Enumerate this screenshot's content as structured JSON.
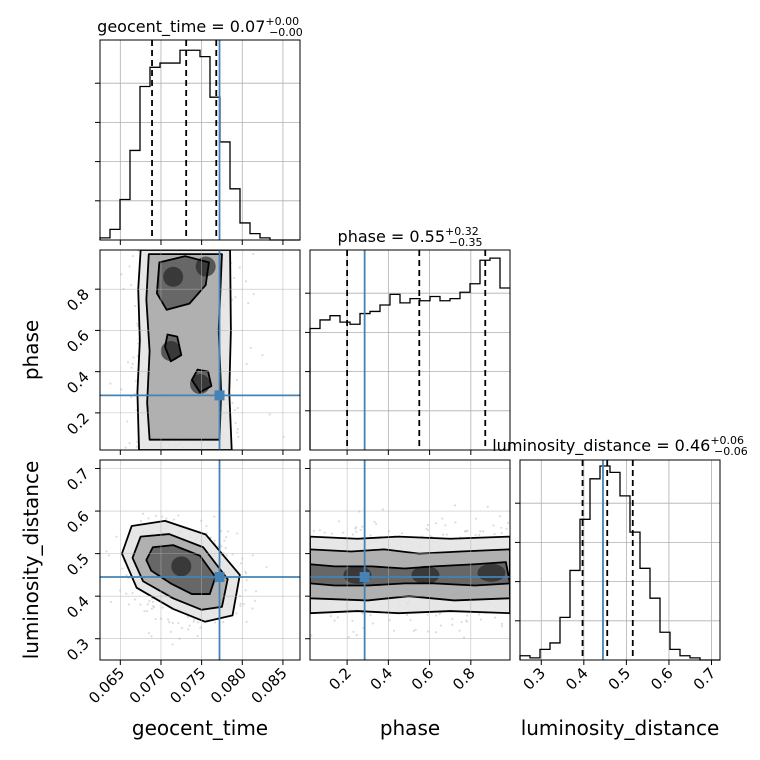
{
  "chart_data": {
    "type": "corner",
    "parameters": [
      "geocent_time",
      "phase",
      "luminosity_distance"
    ],
    "axis_labels": {
      "x": [
        "geocent_time",
        "phase",
        "luminosity_distance"
      ],
      "y": [
        "phase",
        "luminosity_distance"
      ]
    },
    "panel_titles": [
      {
        "param": "geocent_time",
        "text": "geocent_time = 0.07",
        "sup": "+0.00",
        "sub": "−0.00"
      },
      {
        "param": "phase",
        "text": "phase = 0.55",
        "sup": "+0.32",
        "sub": "−0.35"
      },
      {
        "param": "luminosity_distance",
        "text": "luminosity_distance = 0.46",
        "sup": "+0.06",
        "sub": "−0.06"
      }
    ],
    "ranges": {
      "geocent_time": [
        0.0625,
        0.0871
      ],
      "phase": [
        0.02,
        0.99
      ],
      "luminosity_distance": [
        0.25,
        0.72
      ]
    },
    "ticks": {
      "geocent_time": {
        "values": [
          0.065,
          0.07,
          0.075,
          0.08,
          0.085
        ],
        "labels": [
          "0.065",
          "0.070",
          "0.075",
          "0.080",
          "0.085"
        ]
      },
      "phase": {
        "values": [
          0.2,
          0.4,
          0.6,
          0.8
        ],
        "labels": [
          "0.2",
          "0.4",
          "0.6",
          "0.8"
        ]
      },
      "luminosity_distance": {
        "values": [
          0.3,
          0.4,
          0.5,
          0.6,
          0.7
        ],
        "labels": [
          "0.3",
          "0.4",
          "0.5",
          "0.6",
          "0.7"
        ]
      }
    },
    "quantiles": {
      "geocent_time": [
        0.0689,
        0.0731,
        0.0768
      ],
      "phase": [
        0.2,
        0.55,
        0.87
      ],
      "luminosity_distance": [
        0.397,
        0.455,
        0.515
      ]
    },
    "truths": {
      "geocent_time": 0.0772,
      "phase": 0.285,
      "luminosity_distance": 0.445
    },
    "histograms": {
      "geocent_time": {
        "bin_edges": [
          0.0625,
          0.06373,
          0.06496,
          0.06619,
          0.06742,
          0.06865,
          0.06988,
          0.07111,
          0.07234,
          0.07357,
          0.0748,
          0.07603,
          0.07726,
          0.07849,
          0.07972,
          0.08095,
          0.08218,
          0.08341,
          0.08464,
          0.08587,
          0.0871
        ],
        "counts": [
          0.01,
          0.05,
          0.19,
          0.42,
          0.72,
          0.81,
          0.83,
          0.83,
          0.89,
          0.89,
          0.86,
          0.67,
          0.46,
          0.24,
          0.08,
          0.03,
          0.01,
          0.0,
          0.0,
          0.0
        ]
      },
      "phase": {
        "bin_edges": [
          0.02,
          0.0685,
          0.117,
          0.1655,
          0.214,
          0.2625,
          0.311,
          0.3595,
          0.408,
          0.4565,
          0.505,
          0.5535,
          0.602,
          0.6505,
          0.699,
          0.7475,
          0.796,
          0.8445,
          0.893,
          0.9415,
          0.99
        ],
        "counts": [
          0.57,
          0.61,
          0.63,
          0.6,
          0.59,
          0.64,
          0.65,
          0.68,
          0.73,
          0.69,
          0.71,
          0.7,
          0.72,
          0.7,
          0.71,
          0.74,
          0.78,
          0.89,
          0.9,
          0.76
        ]
      },
      "luminosity_distance": {
        "bin_edges": [
          0.25,
          0.2735,
          0.297,
          0.3205,
          0.344,
          0.3675,
          0.391,
          0.4145,
          0.438,
          0.4615,
          0.485,
          0.5085,
          0.532,
          0.5555,
          0.579,
          0.6025,
          0.626,
          0.6495,
          0.673,
          0.6965,
          0.72
        ],
        "counts": [
          0.02,
          0.01,
          0.05,
          0.08,
          0.2,
          0.42,
          0.66,
          0.85,
          0.91,
          0.88,
          0.77,
          0.6,
          0.43,
          0.29,
          0.13,
          0.05,
          0.02,
          0.01,
          0.0,
          0.0
        ]
      }
    },
    "joint_distributions": [
      {
        "x": "geocent_time",
        "y": "phase",
        "contours": [
          {
            "level": "outer",
            "path": [
              [
                0.0675,
                0.99
              ],
              [
                0.0672,
                0.8
              ],
              [
                0.0674,
                0.55
              ],
              [
                0.0671,
                0.3
              ],
              [
                0.0673,
                0.02
              ],
              [
                0.0787,
                0.02
              ],
              [
                0.0784,
                0.3
              ],
              [
                0.0786,
                0.6
              ],
              [
                0.0785,
                0.99
              ]
            ]
          },
          {
            "level": "middle",
            "path": [
              [
                0.0685,
                0.97
              ],
              [
                0.0682,
                0.75
              ],
              [
                0.0686,
                0.5
              ],
              [
                0.0683,
                0.25
              ],
              [
                0.0686,
                0.07
              ],
              [
                0.0772,
                0.07
              ],
              [
                0.0774,
                0.3
              ],
              [
                0.0771,
                0.6
              ],
              [
                0.0775,
                0.97
              ]
            ]
          },
          {
            "level": "inner",
            "path": [
              [
                0.0698,
                0.93
              ],
              [
                0.0695,
                0.78
              ],
              [
                0.0707,
                0.7
              ],
              [
                0.0735,
                0.73
              ],
              [
                0.0755,
                0.82
              ],
              [
                0.0759,
                0.93
              ],
              [
                0.073,
                0.96
              ]
            ]
          },
          {
            "level": "inner",
            "path": [
              [
                0.0705,
                0.52
              ],
              [
                0.0712,
                0.45
              ],
              [
                0.0725,
                0.48
              ],
              [
                0.072,
                0.57
              ],
              [
                0.0708,
                0.58
              ]
            ]
          },
          {
            "level": "inner",
            "path": [
              [
                0.0738,
                0.36
              ],
              [
                0.0748,
                0.3
              ],
              [
                0.0762,
                0.33
              ],
              [
                0.0758,
                0.4
              ],
              [
                0.0745,
                0.41
              ]
            ]
          }
        ]
      },
      {
        "x": "geocent_time",
        "y": "luminosity_distance",
        "contours": [
          {
            "level": "outer",
            "path": [
              [
                0.0652,
                0.5
              ],
              [
                0.0664,
                0.565
              ],
              [
                0.0705,
                0.577
              ],
              [
                0.0755,
                0.545
              ],
              [
                0.0797,
                0.45
              ],
              [
                0.0788,
                0.355
              ],
              [
                0.0754,
                0.34
              ],
              [
                0.0715,
                0.37
              ],
              [
                0.067,
                0.42
              ]
            ]
          },
          {
            "level": "middle",
            "path": [
              [
                0.0665,
                0.49
              ],
              [
                0.0675,
                0.54
              ],
              [
                0.071,
                0.546
              ],
              [
                0.0752,
                0.515
              ],
              [
                0.0782,
                0.44
              ],
              [
                0.0775,
                0.375
              ],
              [
                0.075,
                0.368
              ],
              [
                0.0715,
                0.395
              ],
              [
                0.0678,
                0.435
              ]
            ]
          },
          {
            "level": "inner",
            "path": [
              [
                0.0682,
                0.485
              ],
              [
                0.069,
                0.515
              ],
              [
                0.0715,
                0.52
              ],
              [
                0.0748,
                0.495
              ],
              [
                0.0767,
                0.445
              ],
              [
                0.076,
                0.405
              ],
              [
                0.0738,
                0.405
              ],
              [
                0.0712,
                0.43
              ],
              [
                0.0688,
                0.46
              ]
            ]
          }
        ]
      },
      {
        "x": "phase",
        "y": "luminosity_distance",
        "contours": [
          {
            "level": "outer",
            "path": [
              [
                0.02,
                0.54
              ],
              [
                0.25,
                0.535
              ],
              [
                0.45,
                0.54
              ],
              [
                0.7,
                0.535
              ],
              [
                0.99,
                0.54
              ],
              [
                0.99,
                0.36
              ],
              [
                0.7,
                0.365
              ],
              [
                0.45,
                0.36
              ],
              [
                0.25,
                0.365
              ],
              [
                0.02,
                0.36
              ]
            ]
          },
          {
            "level": "middle",
            "path": [
              [
                0.02,
                0.51
              ],
              [
                0.22,
                0.505
              ],
              [
                0.38,
                0.51
              ],
              [
                0.55,
                0.5
              ],
              [
                0.75,
                0.505
              ],
              [
                0.99,
                0.51
              ],
              [
                0.99,
                0.395
              ],
              [
                0.72,
                0.39
              ],
              [
                0.5,
                0.4
              ],
              [
                0.3,
                0.39
              ],
              [
                0.02,
                0.395
              ]
            ]
          },
          {
            "level": "inner",
            "path": [
              [
                0.02,
                0.475
              ],
              [
                0.14,
                0.47
              ],
              [
                0.32,
                0.47
              ],
              [
                0.48,
                0.465
              ],
              [
                0.62,
                0.47
              ],
              [
                0.82,
                0.475
              ],
              [
                0.97,
                0.48
              ],
              [
                0.99,
                0.43
              ],
              [
                0.82,
                0.425
              ],
              [
                0.62,
                0.43
              ],
              [
                0.48,
                0.43
              ],
              [
                0.3,
                0.425
              ],
              [
                0.14,
                0.425
              ],
              [
                0.02,
                0.43
              ]
            ]
          }
        ]
      }
    ]
  },
  "colors": {
    "truth": "#4682b4",
    "line": "#000000",
    "grid": "#b0b0b0",
    "scatter": "#9a9a9a",
    "density": "#1a1a1a"
  }
}
